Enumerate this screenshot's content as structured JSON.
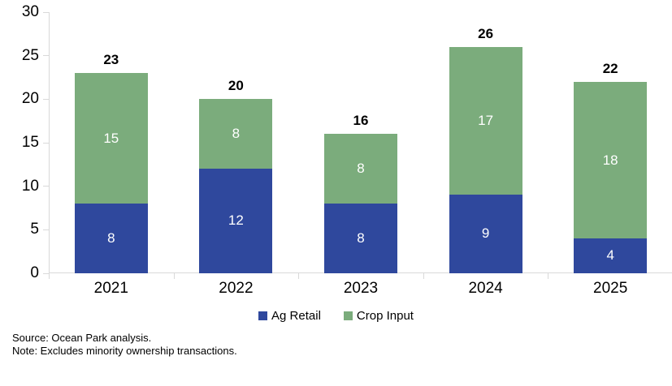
{
  "chart_data": {
    "type": "bar",
    "stacked": true,
    "categories": [
      "2021",
      "2022",
      "2023",
      "2024",
      "2025"
    ],
    "series": [
      {
        "name": "Ag Retail",
        "color": "#2F489D",
        "values": [
          8,
          12,
          8,
          9,
          4
        ]
      },
      {
        "name": "Crop Input",
        "color": "#7BAC7C",
        "values": [
          15,
          8,
          8,
          17,
          18
        ]
      }
    ],
    "totals": [
      23,
      20,
      16,
      26,
      22
    ],
    "title": "",
    "xlabel": "",
    "ylabel": "",
    "ylim": [
      0,
      30
    ],
    "yticks": [
      0,
      5,
      10,
      15,
      20,
      25,
      30
    ],
    "grid": false,
    "legend_position": "bottom",
    "colors": {
      "axis": "#D9D9D9",
      "axis_text": "#000000",
      "bar_value_text": "#FFFFFF",
      "total_text": "#000000"
    }
  },
  "footer": {
    "source": "Source: Ocean Park analysis.",
    "note": "Note: Excludes minority ownership transactions."
  }
}
